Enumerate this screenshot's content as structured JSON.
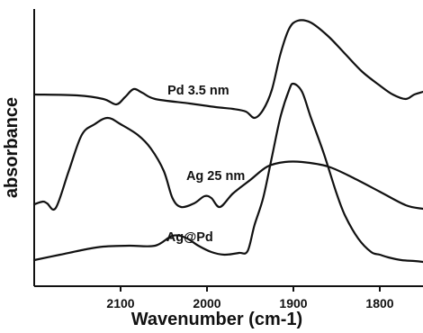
{
  "chart_data": {
    "type": "line",
    "title": "",
    "xlabel": "Wavenumber (cm-1)",
    "ylabel": "absorbance",
    "xlim": [
      2200,
      1750
    ],
    "x_reversed": true,
    "xticks": [
      2100,
      2000,
      1900,
      1800
    ],
    "y_ticks_labeled": false,
    "grid": false,
    "series": [
      {
        "name": "Pd 3.5 nm",
        "color": "#111111",
        "points": [
          [
            2200,
            105
          ],
          [
            2150,
            106
          ],
          [
            2120,
            110
          ],
          [
            2105,
            116
          ],
          [
            2095,
            108
          ],
          [
            2085,
            99
          ],
          [
            2075,
            103
          ],
          [
            2060,
            110
          ],
          [
            2020,
            115
          ],
          [
            1990,
            119
          ],
          [
            1970,
            121
          ],
          [
            1955,
            124
          ],
          [
            1945,
            131
          ],
          [
            1935,
            122
          ],
          [
            1925,
            100
          ],
          [
            1915,
            60
          ],
          [
            1905,
            32
          ],
          [
            1895,
            23
          ],
          [
            1880,
            25
          ],
          [
            1860,
            40
          ],
          [
            1840,
            60
          ],
          [
            1820,
            80
          ],
          [
            1800,
            95
          ],
          [
            1785,
            105
          ],
          [
            1770,
            110
          ],
          [
            1760,
            105
          ],
          [
            1750,
            102
          ]
        ]
      },
      {
        "name": "Ag 25 nm",
        "color": "#111111",
        "points": [
          [
            2200,
            227
          ],
          [
            2190,
            224
          ],
          [
            2185,
            226
          ],
          [
            2175,
            231
          ],
          [
            2160,
            190
          ],
          [
            2145,
            150
          ],
          [
            2130,
            138
          ],
          [
            2115,
            131
          ],
          [
            2100,
            138
          ],
          [
            2080,
            150
          ],
          [
            2065,
            165
          ],
          [
            2050,
            190
          ],
          [
            2040,
            220
          ],
          [
            2030,
            230
          ],
          [
            2015,
            226
          ],
          [
            2003,
            218
          ],
          [
            1995,
            220
          ],
          [
            1985,
            230
          ],
          [
            1970,
            215
          ],
          [
            1950,
            200
          ],
          [
            1930,
            185
          ],
          [
            1910,
            180
          ],
          [
            1890,
            180
          ],
          [
            1860,
            185
          ],
          [
            1830,
            198
          ],
          [
            1800,
            213
          ],
          [
            1770,
            228
          ],
          [
            1750,
            232
          ]
        ]
      },
      {
        "name": "Ag@Pd",
        "color": "#111111",
        "points": [
          [
            2200,
            289
          ],
          [
            2170,
            283
          ],
          [
            2140,
            277
          ],
          [
            2120,
            274
          ],
          [
            2090,
            273
          ],
          [
            2060,
            273
          ],
          [
            2040,
            262
          ],
          [
            2025,
            264
          ],
          [
            2010,
            273
          ],
          [
            1995,
            280
          ],
          [
            1980,
            283
          ],
          [
            1963,
            281
          ],
          [
            1953,
            279
          ],
          [
            1945,
            250
          ],
          [
            1935,
            220
          ],
          [
            1925,
            175
          ],
          [
            1915,
            130
          ],
          [
            1905,
            100
          ],
          [
            1900,
            93
          ],
          [
            1890,
            102
          ],
          [
            1880,
            130
          ],
          [
            1865,
            170
          ],
          [
            1850,
            215
          ],
          [
            1840,
            240
          ],
          [
            1825,
            265
          ],
          [
            1810,
            280
          ],
          [
            1800,
            283
          ],
          [
            1790,
            286
          ],
          [
            1775,
            289
          ],
          [
            1760,
            290
          ],
          [
            1750,
            291
          ]
        ]
      }
    ],
    "annotations": [
      {
        "text": "Pd 3.5 nm",
        "x": 2010,
        "level": 105
      },
      {
        "text": "Ag 25 nm",
        "x": 1990,
        "level": 200
      },
      {
        "text": "Ag@Pd",
        "x": 2020,
        "level": 268
      }
    ]
  }
}
